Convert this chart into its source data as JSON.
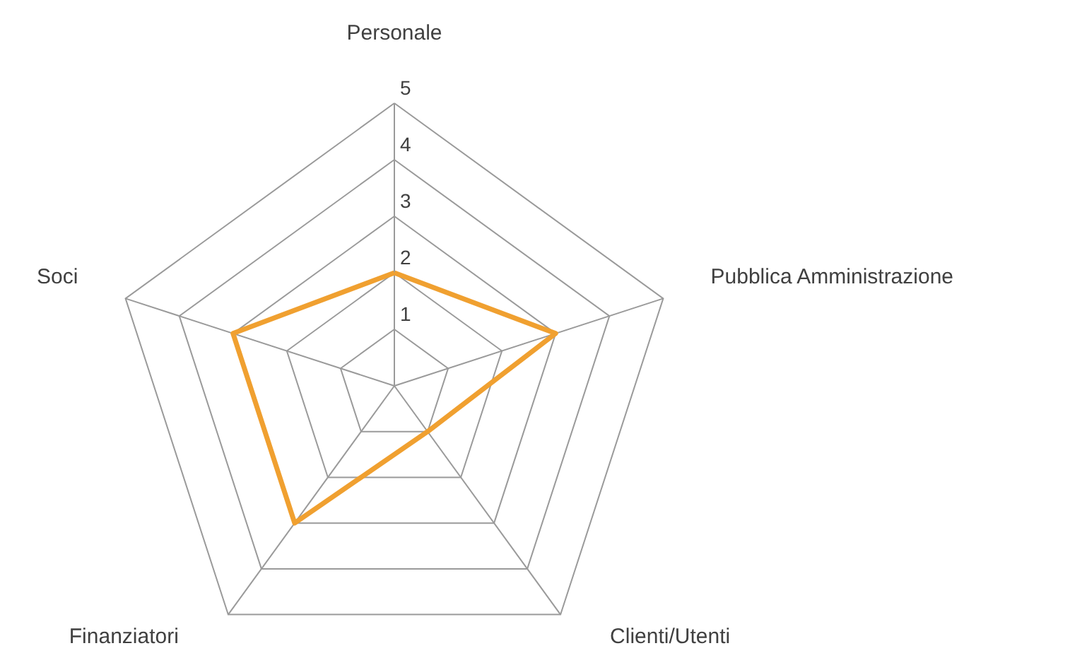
{
  "chart_data": {
    "type": "radar",
    "categories": [
      "Personale",
      "Pubblica Amministrazione",
      "Clienti/Utenti",
      "Finanziatori",
      "Soci"
    ],
    "series": [
      {
        "color": "#f0a030",
        "values": [
          2,
          3,
          1,
          3,
          3
        ]
      }
    ],
    "ylim": [
      0,
      5
    ],
    "yticks": [
      1,
      2,
      3,
      4,
      5
    ],
    "grid": true
  }
}
